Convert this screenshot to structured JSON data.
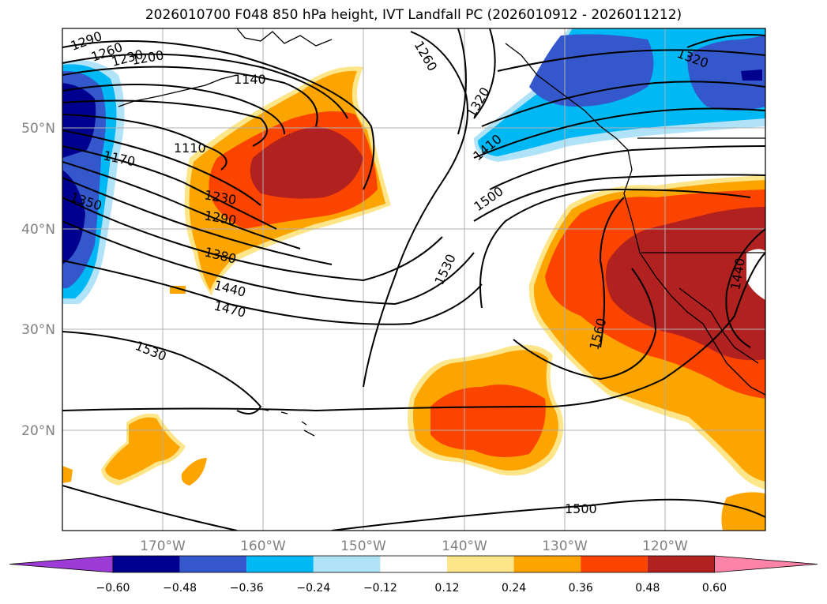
{
  "title": "2026010700 F048 850 hPa height, IVT Landfall PC (2026010912 - 2026011212)",
  "axes": {
    "lat_labels": [
      "50°N",
      "40°N",
      "30°N",
      "20°N"
    ],
    "lon_labels": [
      "170°W",
      "160°W",
      "150°W",
      "140°W",
      "130°W",
      "120°W"
    ]
  },
  "contour_labels": [
    "1290",
    "1260",
    "1230",
    "1200",
    "1140",
    "1110",
    "1170",
    "1350",
    "1230",
    "1290",
    "1380",
    "1440",
    "1470",
    "1530",
    "1260",
    "1320",
    "1410",
    "1500",
    "1530",
    "1560",
    "1320",
    "1440",
    "1500"
  ],
  "colorbar": {
    "colors": [
      "#9c3bd6",
      "#00008f",
      "#3458cc",
      "#00b8f4",
      "#b0e2f8",
      "#ffffff",
      "#fde58a",
      "#fca400",
      "#fb4400",
      "#b0211f",
      "#fd84a8"
    ],
    "tick_labels": [
      "−0.60",
      "−0.48",
      "−0.36",
      "−0.24",
      "−0.12",
      "0.12",
      "0.24",
      "0.36",
      "0.48",
      "0.60"
    ]
  }
}
